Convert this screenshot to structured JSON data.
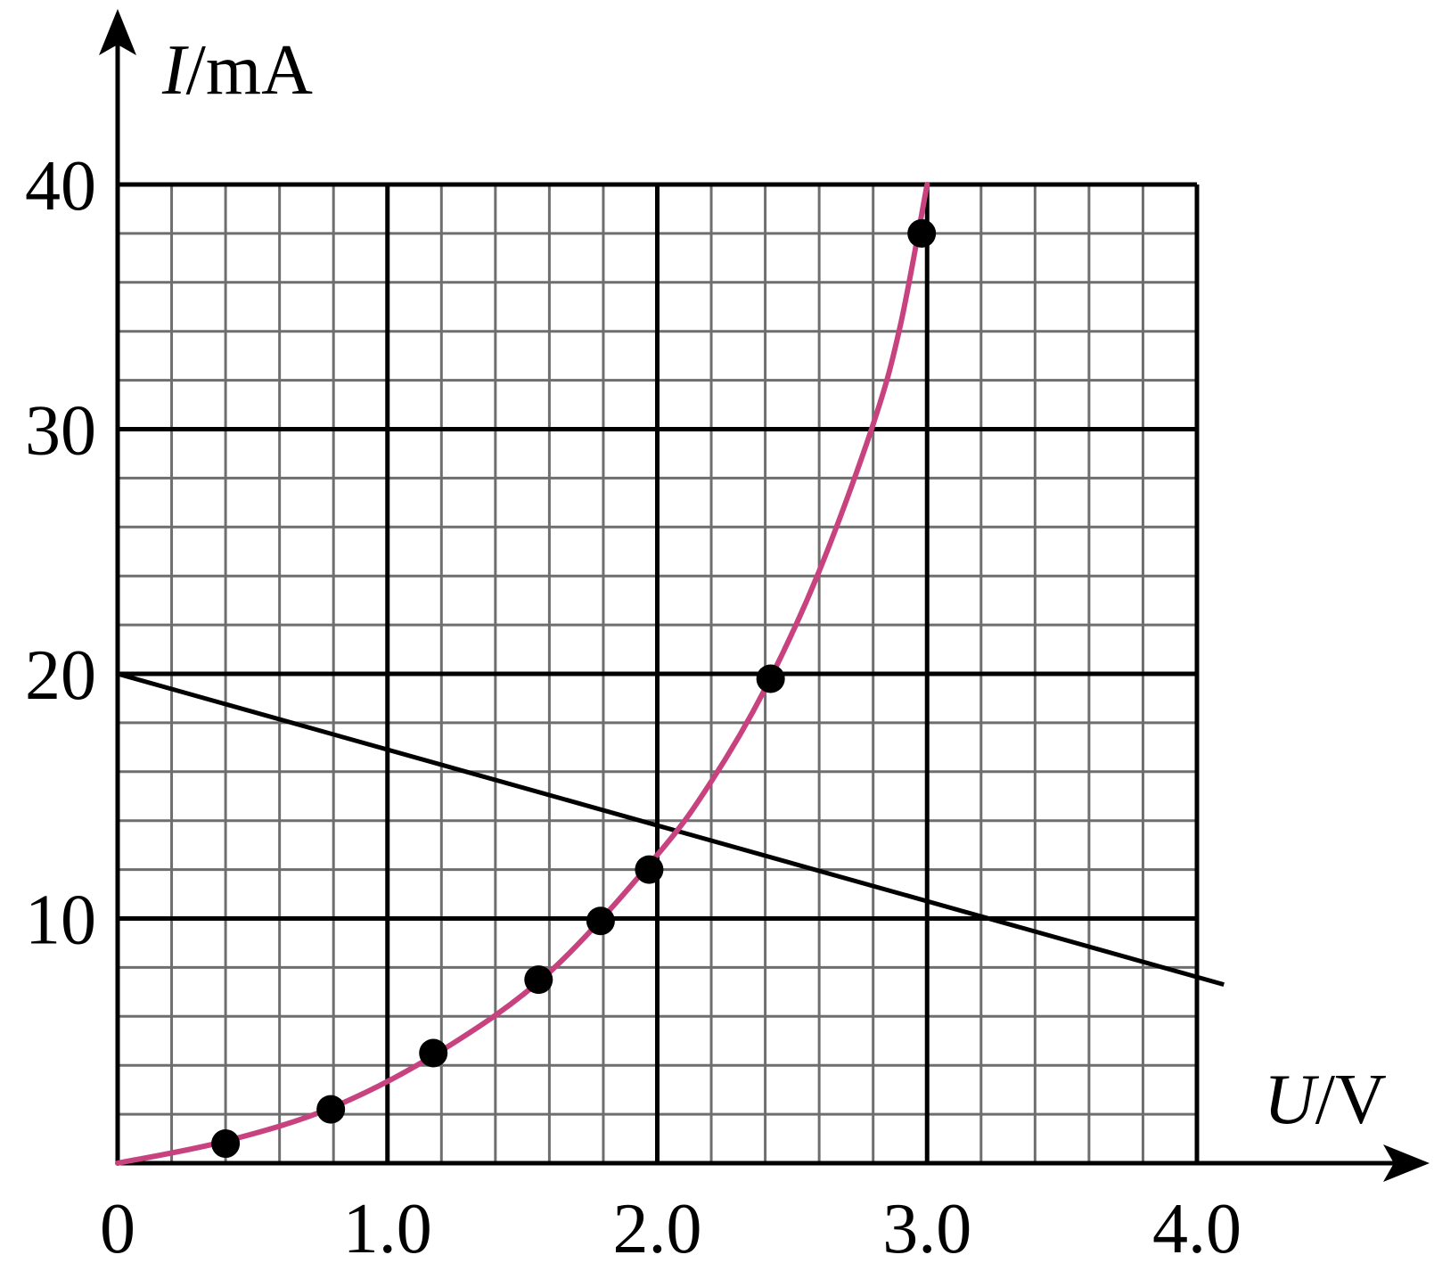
{
  "chart_data": {
    "type": "scatter",
    "title": "",
    "xlabel": {
      "symbol": "U",
      "unit": "/V"
    },
    "ylabel": {
      "symbol": "I",
      "unit": "/mA"
    },
    "xlim": [
      0,
      4.0
    ],
    "ylim": [
      0,
      40
    ],
    "x_ticks": [
      {
        "value": 0,
        "label": "0"
      },
      {
        "value": 1.0,
        "label": "1.0"
      },
      {
        "value": 2.0,
        "label": "2.0"
      },
      {
        "value": 3.0,
        "label": "3.0"
      },
      {
        "value": 4.0,
        "label": "4.0"
      }
    ],
    "y_ticks": [
      {
        "value": 10,
        "label": "10"
      },
      {
        "value": 20,
        "label": "20"
      },
      {
        "value": 30,
        "label": "30"
      },
      {
        "value": 40,
        "label": "40"
      }
    ],
    "grid": {
      "minor_x_step": 0.2,
      "minor_y_step": 2,
      "major_x_step": 1.0,
      "major_y_step": 10
    },
    "points": [
      {
        "x": 0.4,
        "y": 0.8
      },
      {
        "x": 0.79,
        "y": 2.2
      },
      {
        "x": 1.17,
        "y": 4.5
      },
      {
        "x": 1.56,
        "y": 7.5
      },
      {
        "x": 1.79,
        "y": 9.9
      },
      {
        "x": 1.97,
        "y": 12.0
      },
      {
        "x": 2.42,
        "y": 19.8
      },
      {
        "x": 2.98,
        "y": 38.0
      }
    ],
    "curve": [
      {
        "x": 0.0,
        "y": 0.0
      },
      {
        "x": 0.4,
        "y": 0.9
      },
      {
        "x": 0.8,
        "y": 2.3
      },
      {
        "x": 1.2,
        "y": 4.6
      },
      {
        "x": 1.6,
        "y": 7.8
      },
      {
        "x": 2.0,
        "y": 12.6
      },
      {
        "x": 2.2,
        "y": 15.6
      },
      {
        "x": 2.4,
        "y": 19.4
      },
      {
        "x": 2.6,
        "y": 24.2
      },
      {
        "x": 2.8,
        "y": 30.2
      },
      {
        "x": 2.9,
        "y": 34.2
      },
      {
        "x": 3.0,
        "y": 40.0
      }
    ],
    "line": [
      {
        "x": 0.0,
        "y": 20.0
      },
      {
        "x": 4.1,
        "y": 7.3
      }
    ],
    "colors": {
      "curve": "#c7427f",
      "line": "#000000",
      "points": "#000000",
      "minor_grid": "#6e6e6e",
      "major_grid": "#000000"
    }
  }
}
